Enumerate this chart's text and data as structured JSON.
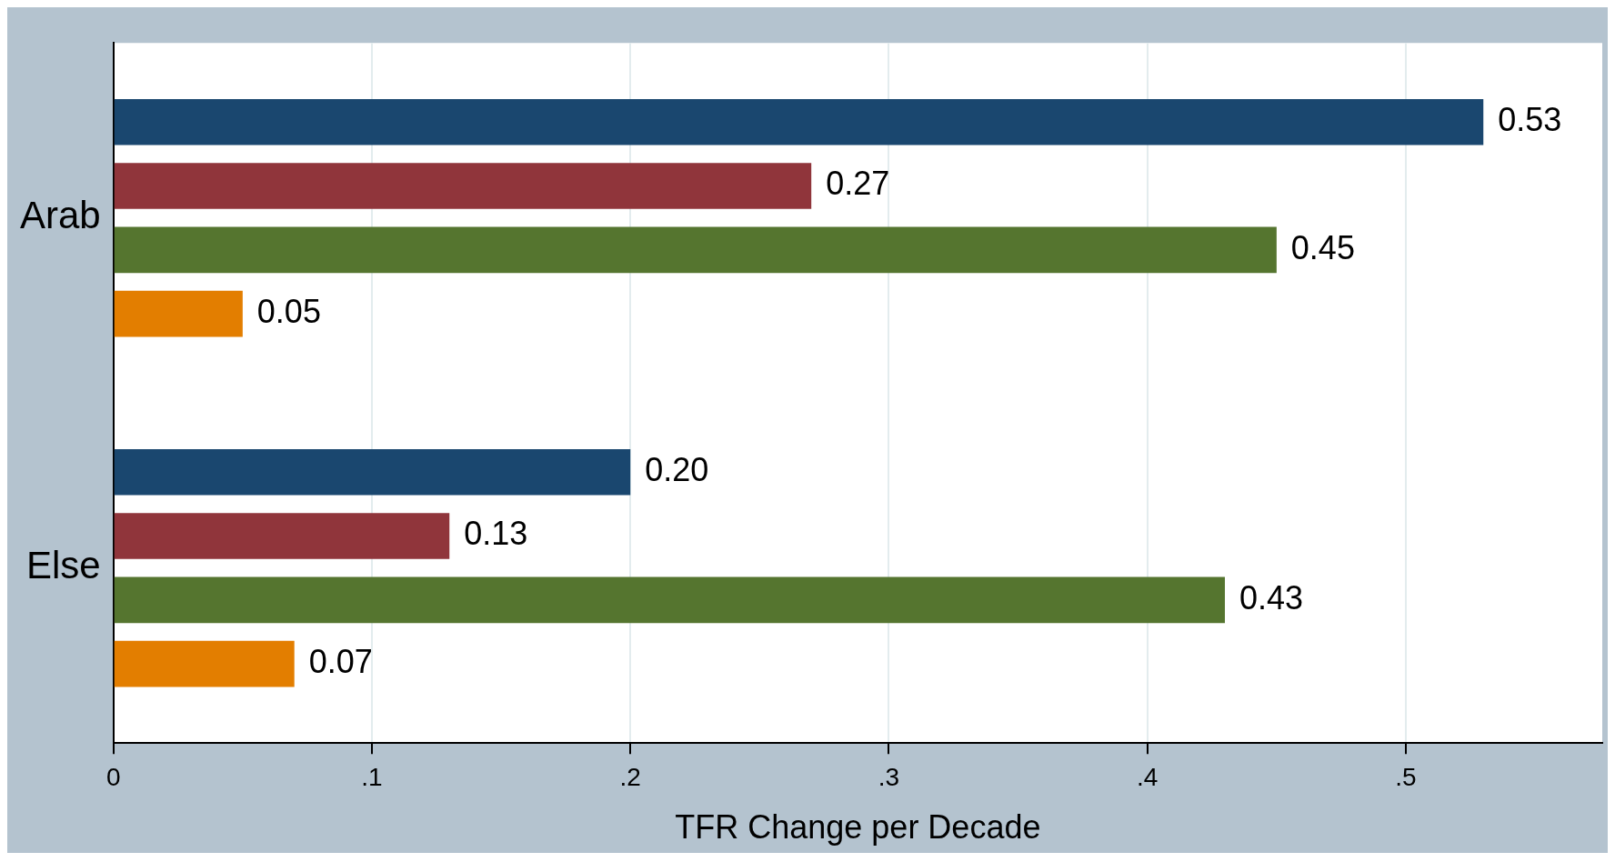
{
  "chart_data": {
    "type": "bar",
    "orientation": "horizontal",
    "xlabel": "TFR Change per Decade",
    "categories": [
      "Arab",
      "Else"
    ],
    "series": [
      {
        "color": "#1a476f",
        "values": [
          0.53,
          0.2
        ],
        "value_labels": [
          "0.53",
          "0.20"
        ]
      },
      {
        "color": "#90353b",
        "values": [
          0.27,
          0.13
        ],
        "value_labels": [
          "0.27",
          "0.13"
        ]
      },
      {
        "color": "#55752f",
        "values": [
          0.45,
          0.43
        ],
        "value_labels": [
          "0.45",
          "0.43"
        ]
      },
      {
        "color": "#e37e00",
        "values": [
          0.05,
          0.07
        ],
        "value_labels": [
          "0.05",
          "0.07"
        ]
      }
    ],
    "xlim": [
      0,
      0.576
    ],
    "xticks": [
      0,
      {
        "value": 0.1,
        "label": ".1"
      },
      {
        "value": 0.2,
        "label": ".2"
      },
      {
        "value": 0.3,
        "label": ".3"
      },
      {
        "value": 0.4,
        "label": ".4"
      },
      {
        "value": 0.5,
        "label": ".5"
      }
    ],
    "grid": "x",
    "legend": false
  }
}
